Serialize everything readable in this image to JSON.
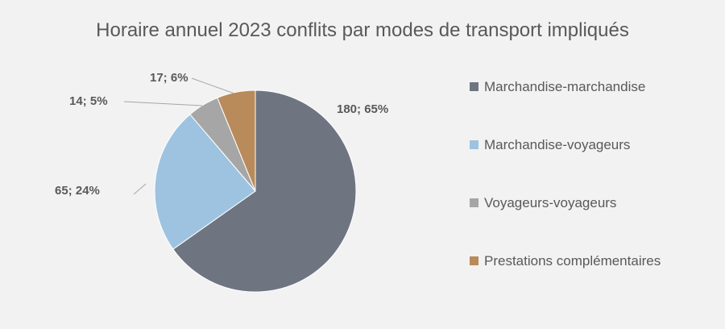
{
  "chart_data": {
    "type": "pie",
    "title": "Horaire annuel 2023 conflits par modes de transport impliqués",
    "categories": [
      "Marchandise-marchandise",
      "Marchandise-voyageurs",
      "Voyageurs-voyageurs",
      "Prestations complémentaires"
    ],
    "values": [
      180,
      65,
      14,
      17
    ],
    "percentages": [
      65,
      24,
      5,
      6
    ],
    "data_labels": [
      "180; 65%",
      "65; 24%",
      "14; 5%",
      "17; 6%"
    ],
    "colors": [
      "#6e7580",
      "#9dc3e0",
      "#a6a6a6",
      "#b98a5a"
    ],
    "legend_position": "right",
    "start_angle_deg": 0,
    "direction": "clockwise"
  }
}
